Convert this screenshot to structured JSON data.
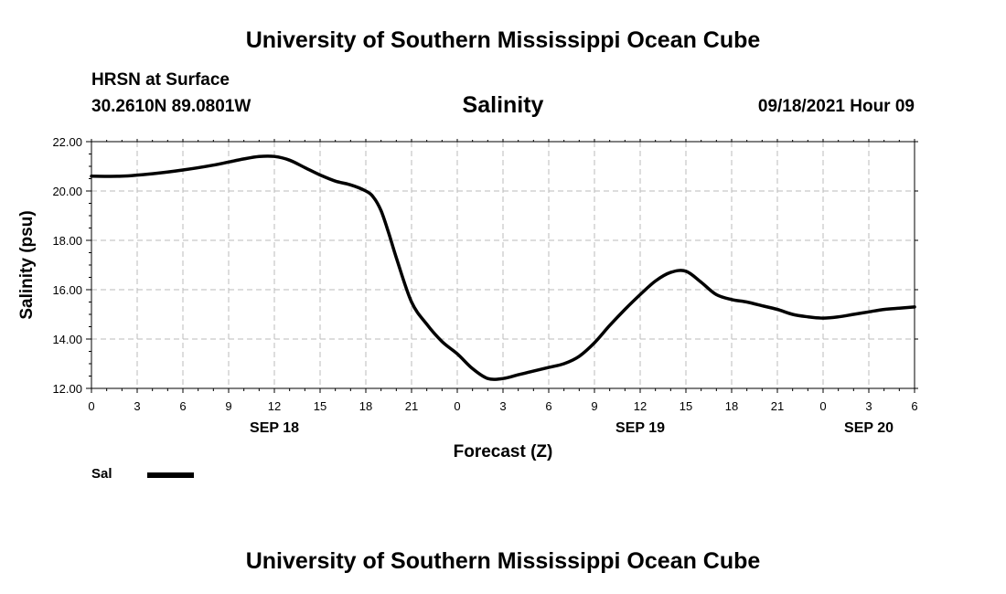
{
  "header": {
    "title_top": "University of Southern Mississippi Ocean Cube",
    "title_bottom": "University of Southern Mississippi Ocean Cube",
    "station": "HRSN at Surface",
    "coords": "30.2610N  89.0801W",
    "datetime": "09/18/2021 Hour 09"
  },
  "legend": {
    "label": "Sal",
    "color": "#000000"
  },
  "chart_data": {
    "type": "line",
    "title": "Salinity",
    "xlabel": "Forecast (Z)",
    "ylabel": "Salinity (psu)",
    "ylim": [
      12,
      22
    ],
    "xlim": [
      0,
      54
    ],
    "grid": true,
    "legend_position": "bottom-left",
    "x_tick_labels": [
      "0",
      "3",
      "6",
      "9",
      "12",
      "15",
      "18",
      "21",
      "0",
      "3",
      "6",
      "9",
      "12",
      "15",
      "18",
      "21",
      "0",
      "3",
      "6"
    ],
    "y_tick_labels": [
      "12.00",
      "14.00",
      "16.00",
      "18.00",
      "20.00",
      "22.00"
    ],
    "date_labels": [
      {
        "label": "SEP 18",
        "hour": 12
      },
      {
        "label": "SEP 19",
        "hour": 36
      },
      {
        "label": "SEP 20",
        "hour": 51
      }
    ],
    "series": [
      {
        "name": "Sal",
        "color": "#000000",
        "x": [
          0,
          2,
          4,
          6,
          8,
          10,
          11,
          12,
          13,
          14,
          15,
          16,
          17,
          18,
          18.5,
          19,
          19.5,
          20,
          21,
          22,
          23,
          24,
          25,
          26,
          27,
          28,
          29,
          30,
          31,
          32,
          33,
          34,
          35,
          36,
          37,
          38,
          39,
          40,
          41,
          42,
          43,
          44,
          45,
          46,
          47,
          48,
          49,
          50,
          51,
          52,
          53,
          54
        ],
        "y": [
          20.6,
          20.6,
          20.7,
          20.85,
          21.05,
          21.3,
          21.4,
          21.4,
          21.25,
          20.95,
          20.65,
          20.4,
          20.25,
          20.0,
          19.75,
          19.2,
          18.3,
          17.3,
          15.5,
          14.6,
          13.9,
          13.4,
          12.8,
          12.4,
          12.4,
          12.55,
          12.7,
          12.85,
          13.0,
          13.3,
          13.85,
          14.55,
          15.2,
          15.8,
          16.35,
          16.7,
          16.75,
          16.3,
          15.8,
          15.6,
          15.5,
          15.35,
          15.2,
          15.0,
          14.9,
          14.85,
          14.9,
          15.0,
          15.1,
          15.2,
          15.25,
          15.3
        ]
      }
    ]
  }
}
